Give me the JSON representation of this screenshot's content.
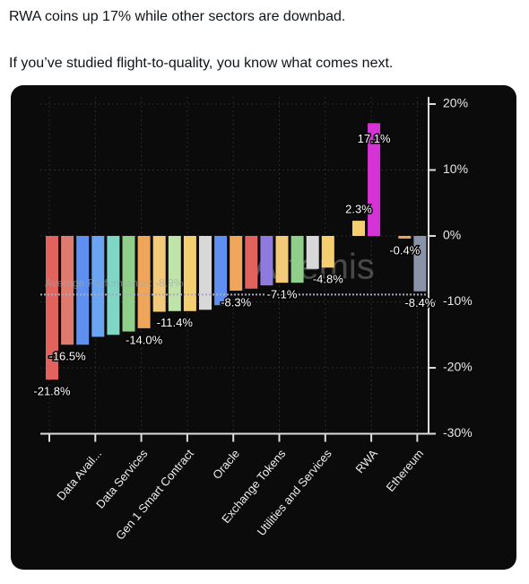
{
  "post": {
    "lines": [
      "RWA coins up 17% while other sectors are downbad.",
      "If you’ve studied flight-to-quality, you know what comes next."
    ]
  },
  "chart_data": {
    "type": "bar",
    "watermark": "Artemis",
    "categories": [
      null,
      null,
      null,
      "Data Avail...",
      null,
      null,
      "Data Services",
      null,
      null,
      "Gen 1 Smart Contract",
      null,
      null,
      "Oracle",
      null,
      null,
      "Exchange Tokens",
      null,
      null,
      "Utilities and Services",
      null,
      null,
      "RWA",
      null,
      null,
      "Ethereum"
    ],
    "values": [
      -21.8,
      -16.5,
      -16.5,
      -15.3,
      -15.0,
      -14.5,
      -14.0,
      -11.5,
      -11.4,
      -11.4,
      -11.2,
      -10.5,
      -8.3,
      -8.0,
      -7.5,
      -7.1,
      -7.1,
      -5.0,
      -4.8,
      null,
      2.3,
      17.1,
      null,
      -0.4,
      -8.4
    ],
    "value_labels": [
      null,
      "-16.5%",
      null,
      null,
      null,
      null,
      "-14.0%",
      null,
      "-11.4%",
      null,
      null,
      null,
      "-8.3%",
      null,
      null,
      "-7.1%",
      null,
      null,
      "-4.8%",
      null,
      "2.3%",
      "17.1%",
      null,
      "-0.4%",
      "-8.4%"
    ],
    "first_label": {
      "index": 0,
      "label": "-21.8%"
    },
    "colors": [
      "#e2625e",
      "#e07a6e",
      "#5f8ff0",
      "#6aa4f2",
      "#7fd6c4",
      "#8fcf8a",
      "#f0a65a",
      "#f3c97a",
      "#bfe3a8",
      "#f3cf70",
      "#d8d8d8",
      "#5f8ff0",
      "#f0a65a",
      "#e2625e",
      "#8f7ae0",
      "#f3c97a",
      "#8fcf8a",
      "#d8d8d8",
      "#f3cf70",
      "#888888",
      "#f3cf70",
      "#d633d6",
      "#888888",
      "#f0a65a",
      "#8a93a8"
    ],
    "average": {
      "value": -8.9,
      "label": "Average Performance: -8.9%"
    },
    "ylim": [
      -30,
      20
    ],
    "yticks": [
      {
        "value": 20,
        "label": "20%"
      },
      {
        "value": 10,
        "label": "10%"
      },
      {
        "value": 0,
        "label": "0%"
      },
      {
        "value": -10,
        "label": "-10%"
      },
      {
        "value": -20,
        "label": "-20%"
      },
      {
        "value": -30,
        "label": "-30%"
      }
    ],
    "grid": true
  }
}
